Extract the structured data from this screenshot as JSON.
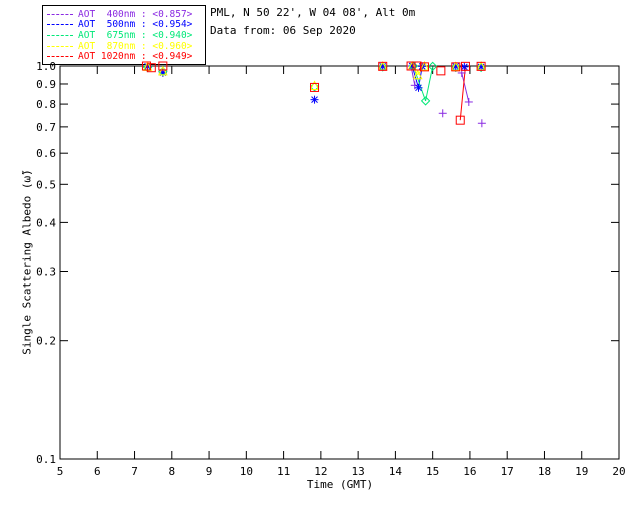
{
  "header": {
    "line1": "PML, N 50 22', W 04 08', Alt 0m",
    "line2": "Data from: 06 Sep 2020"
  },
  "legend": {
    "entries": [
      {
        "label": "AOT  400nm : <0.857>",
        "color": "#8A2BE2"
      },
      {
        "label": "AOT  500nm : <0.954>",
        "color": "#0000FF"
      },
      {
        "label": "AOT  675nm : <0.940>",
        "color": "#00E878"
      },
      {
        "label": "AOT  870nm : <0.960>",
        "color": "#FFFF00"
      },
      {
        "label": "AOT 1020nm : <0.949>",
        "color": "#FF0000"
      }
    ]
  },
  "chart_data": {
    "type": "scatter",
    "title": "",
    "xlabel": "Time (GMT)",
    "ylabel": "Single Scattering Albedo (ω̃)",
    "xlim": [
      5,
      20
    ],
    "ylim": [
      0.1,
      1.0
    ],
    "yscale": "log",
    "grid": false,
    "legend_position": "top-left",
    "x_ticks": [
      5,
      6,
      7,
      8,
      9,
      10,
      11,
      12,
      13,
      14,
      15,
      16,
      17,
      18,
      19,
      20
    ],
    "y_ticks": [
      {
        "value": 1.0,
        "label": "1.0"
      },
      {
        "value": 0.9,
        "label": "0.9"
      },
      {
        "value": 0.8,
        "label": "0.8"
      },
      {
        "value": 0.7,
        "label": "0.7"
      },
      {
        "value": 0.6,
        "label": "0.6"
      },
      {
        "value": 0.5,
        "label": "0.5"
      },
      {
        "value": 0.4,
        "label": "0.4"
      },
      {
        "value": 0.3,
        "label": "0.3"
      },
      {
        "value": 0.2,
        "label": "0.2"
      },
      {
        "value": 0.1,
        "label": "0.1"
      }
    ],
    "series": [
      {
        "name": "AOT 400nm",
        "mean_ssa": "<0.857>",
        "color": "#8A2BE2",
        "marker": "plus",
        "points": [
          [
            7.35,
            0.995
          ],
          [
            7.76,
            0.96
          ],
          [
            13.66,
            0.995
          ],
          [
            14.42,
            1.0
          ],
          [
            14.52,
            0.893
          ],
          [
            15.27,
            0.758
          ],
          [
            15.62,
            0.995
          ],
          [
            15.78,
            0.96
          ],
          [
            15.97,
            0.81
          ],
          [
            16.32,
            0.715
          ]
        ],
        "segments": [
          [
            3,
            4
          ],
          [
            7,
            8
          ]
        ]
      },
      {
        "name": "AOT 500nm",
        "mean_ssa": "<0.954>",
        "color": "#0000FF",
        "marker": "asterisk",
        "points": [
          [
            7.35,
            0.998
          ],
          [
            7.76,
            0.962
          ],
          [
            11.83,
            0.821
          ],
          [
            13.66,
            0.998
          ],
          [
            14.45,
            1.0
          ],
          [
            14.62,
            0.88
          ],
          [
            14.72,
            0.998
          ],
          [
            15.62,
            0.998
          ],
          [
            15.85,
            0.995
          ],
          [
            16.3,
            0.995
          ]
        ],
        "segments": [
          [
            4,
            5
          ],
          [
            5,
            6
          ]
        ]
      },
      {
        "name": "AOT 675nm",
        "mean_ssa": "<0.940>",
        "color": "#00E878",
        "marker": "diamond",
        "points": [
          [
            7.35,
            0.992
          ],
          [
            7.76,
            0.968
          ],
          [
            11.83,
            0.885
          ],
          [
            13.66,
            0.995
          ],
          [
            14.48,
            1.0
          ],
          [
            14.81,
            0.815
          ],
          [
            15.0,
            0.998
          ],
          [
            15.62,
            0.992
          ],
          [
            16.3,
            0.992
          ]
        ],
        "segments": [
          [
            4,
            5
          ],
          [
            5,
            6
          ]
        ]
      },
      {
        "name": "AOT 870nm",
        "mean_ssa": "<0.960>",
        "color": "#FFFF00",
        "marker": "triangle",
        "points": [
          [
            7.35,
            0.998
          ],
          [
            7.76,
            0.972
          ],
          [
            11.83,
            0.892
          ],
          [
            13.66,
            1.0
          ],
          [
            14.45,
            1.0
          ],
          [
            14.6,
            0.95
          ],
          [
            14.78,
            1.0
          ],
          [
            15.62,
            0.998
          ],
          [
            16.3,
            1.0
          ]
        ],
        "segments": [
          [
            4,
            5
          ],
          [
            5,
            6
          ]
        ]
      },
      {
        "name": "AOT 1020nm",
        "mean_ssa": "<0.949>",
        "color": "#FF0000",
        "marker": "square",
        "points": [
          [
            7.32,
            1.0
          ],
          [
            7.45,
            0.99
          ],
          [
            7.76,
            1.0
          ],
          [
            11.83,
            0.882
          ],
          [
            13.66,
            0.998
          ],
          [
            14.42,
            1.0
          ],
          [
            14.58,
            1.0
          ],
          [
            14.78,
            0.995
          ],
          [
            15.22,
            0.972
          ],
          [
            15.62,
            0.995
          ],
          [
            15.74,
            0.728
          ],
          [
            15.88,
            0.998
          ],
          [
            16.3,
            0.998
          ]
        ],
        "segments": [
          [
            10,
            11
          ]
        ]
      }
    ]
  }
}
